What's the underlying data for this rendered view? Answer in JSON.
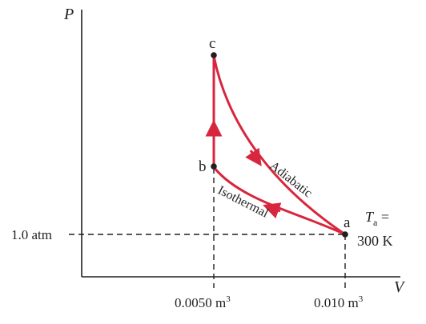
{
  "axes": {
    "y_label": "P",
    "x_label": "V",
    "y_tick": "1.0 atm",
    "x_ticks": [
      "0.0050 m",
      "0.010 m"
    ],
    "x_tick_exponent": "3"
  },
  "points": {
    "a": "a",
    "b": "b",
    "c": "c"
  },
  "curves": {
    "adiabatic": "Adiabatic",
    "isothermal": "Isothermal"
  },
  "temperature": {
    "symbol": "T",
    "subscript": "a",
    "equals": " =",
    "value": "300 K"
  },
  "colors": {
    "process": "#d7263d",
    "ink": "#231f20"
  }
}
